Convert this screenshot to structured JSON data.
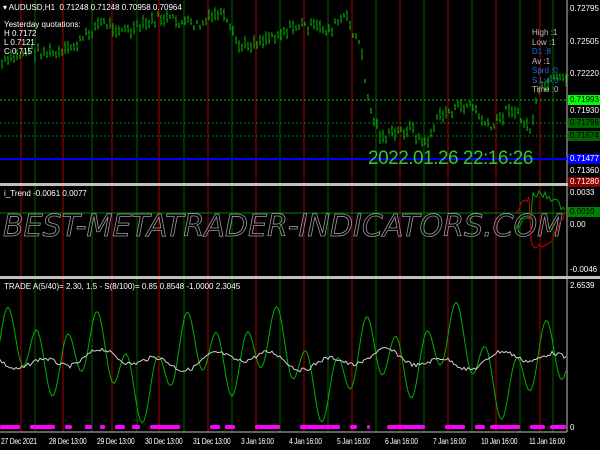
{
  "main": {
    "title": "AUDUSD,H1",
    "ohlc": "0.71248 0.71248 0.70958 0.70964",
    "yesterday": {
      "title": "Yesterday quotations:",
      "h": "H 0.7172",
      "l": "L 0.7121",
      "c": "C 0.715"
    },
    "clock": "2022.01.26 22:16:26",
    "info": [
      {
        "label": "High :",
        "value": "1",
        "color": "#c0c0c0"
      },
      {
        "label": "Low :",
        "value": "1",
        "color": "#c0c0c0"
      },
      {
        "label": "D1 :",
        "value": "8",
        "color": "#1e6fd9"
      },
      {
        "label": "Av :",
        "value": "1",
        "color": "#c0c0c0"
      },
      {
        "label": "Sprd :",
        "value": "0",
        "color": "#1e6fd9"
      },
      {
        "label": "S.Lvl :",
        "value": "0",
        "color": "#1e6fd9"
      },
      {
        "label": "Time :",
        "value": "0",
        "color": "#c0c0c0"
      }
    ],
    "price_labels": [
      "0.72795",
      "0.72505",
      "0.72220",
      "0.71930",
      "0.71360"
    ],
    "highlight_labels": [
      {
        "value": "0.71993",
        "bg": "#00ff00",
        "fg": "#000000"
      },
      {
        "value": "0.71796",
        "bg": "#006400",
        "fg": "#000000"
      },
      {
        "value": "0.71674",
        "bg": "#006400",
        "fg": "#000000"
      },
      {
        "value": "0.71477",
        "bg": "#0000ff",
        "fg": "#ffffff"
      },
      {
        "value": "0.71280",
        "bg": "#8b0000",
        "fg": "#ffffff"
      }
    ]
  },
  "trend": {
    "title": "i_Trend -0.0061 0.0077",
    "labels": [
      "0.0033",
      "0.00",
      "-0.0046"
    ],
    "highlight": {
      "value": "0.0010",
      "bg": "#008000"
    }
  },
  "trade": {
    "title": "TRADE  A(5/40)= 2.30, 1.5 - S(8/100)= 0.85  0.8548 -1.0000 2.3045",
    "labels": [
      "2.6539",
      "0"
    ]
  },
  "time_axis": [
    "27 Dec 2021",
    "28 Dec 13:00",
    "29 Dec 13:00",
    "30 Dec 13:00",
    "31 Dec 13:00",
    "3 Jan 16:00",
    "4 Jan 16:00",
    "5 Jan 16:00",
    "6 Jan 16:00",
    "7 Jan 16:00",
    "10 Jan 16:00",
    "11 Jan 16:00"
  ],
  "watermark": "BEST-METATRADER-INDICATORS.COM",
  "colors": {
    "bull": "#00b000",
    "grid_red": "#b00000",
    "grid_green": "#006400",
    "magenta": "#ff00ff"
  }
}
